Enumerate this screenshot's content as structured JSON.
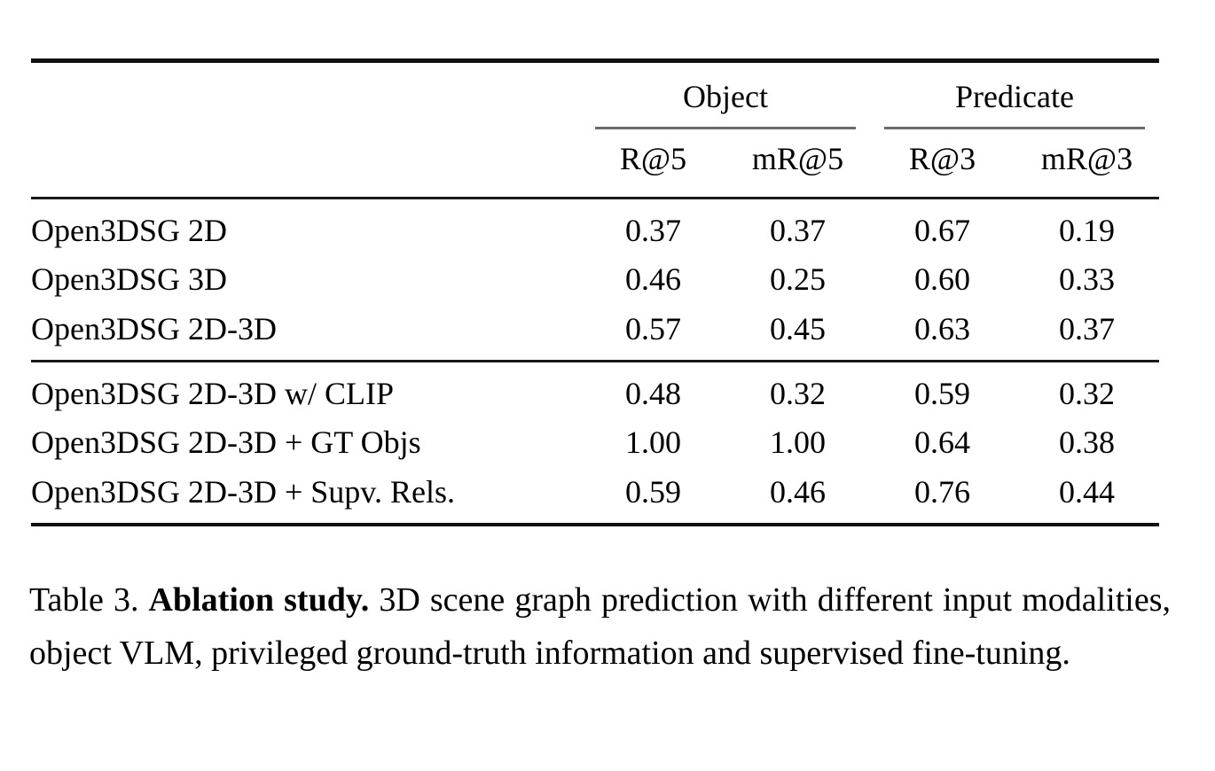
{
  "table": {
    "groups": [
      {
        "label": "Object"
      },
      {
        "label": "Predicate"
      }
    ],
    "col_headers": [
      "R@5",
      "mR@5",
      "R@3",
      "mR@3"
    ],
    "sections": [
      {
        "rows": [
          {
            "label": "Open3DSG 2D",
            "values": [
              "0.37",
              "0.37",
              "0.67",
              "0.19"
            ]
          },
          {
            "label": "Open3DSG 3D",
            "values": [
              "0.46",
              "0.25",
              "0.60",
              "0.33"
            ]
          },
          {
            "label": "Open3DSG 2D-3D",
            "values": [
              "0.57",
              "0.45",
              "0.63",
              "0.37"
            ]
          }
        ]
      },
      {
        "rows": [
          {
            "label": "Open3DSG 2D-3D w/ CLIP",
            "values": [
              "0.48",
              "0.32",
              "0.59",
              "0.32"
            ]
          },
          {
            "label": "Open3DSG 2D-3D + GT Objs",
            "values": [
              "1.00",
              "1.00",
              "0.64",
              "0.38"
            ]
          },
          {
            "label": "Open3DSG 2D-3D + Supv. Rels.",
            "values": [
              "0.59",
              "0.46",
              "0.76",
              "0.44"
            ]
          }
        ]
      }
    ]
  },
  "caption": {
    "tag": "Table 3.",
    "title": "Ablation study.",
    "text": "3D scene graph prediction with different input modalities, object VLM, privileged ground-truth information and supervised fine-tuning."
  },
  "colors": {
    "background": "#ffffff",
    "text": "#000000",
    "heavy_rule": "#101010",
    "mid_rule": "#1a1a1a",
    "cmidrule": "#6b6b6b"
  }
}
